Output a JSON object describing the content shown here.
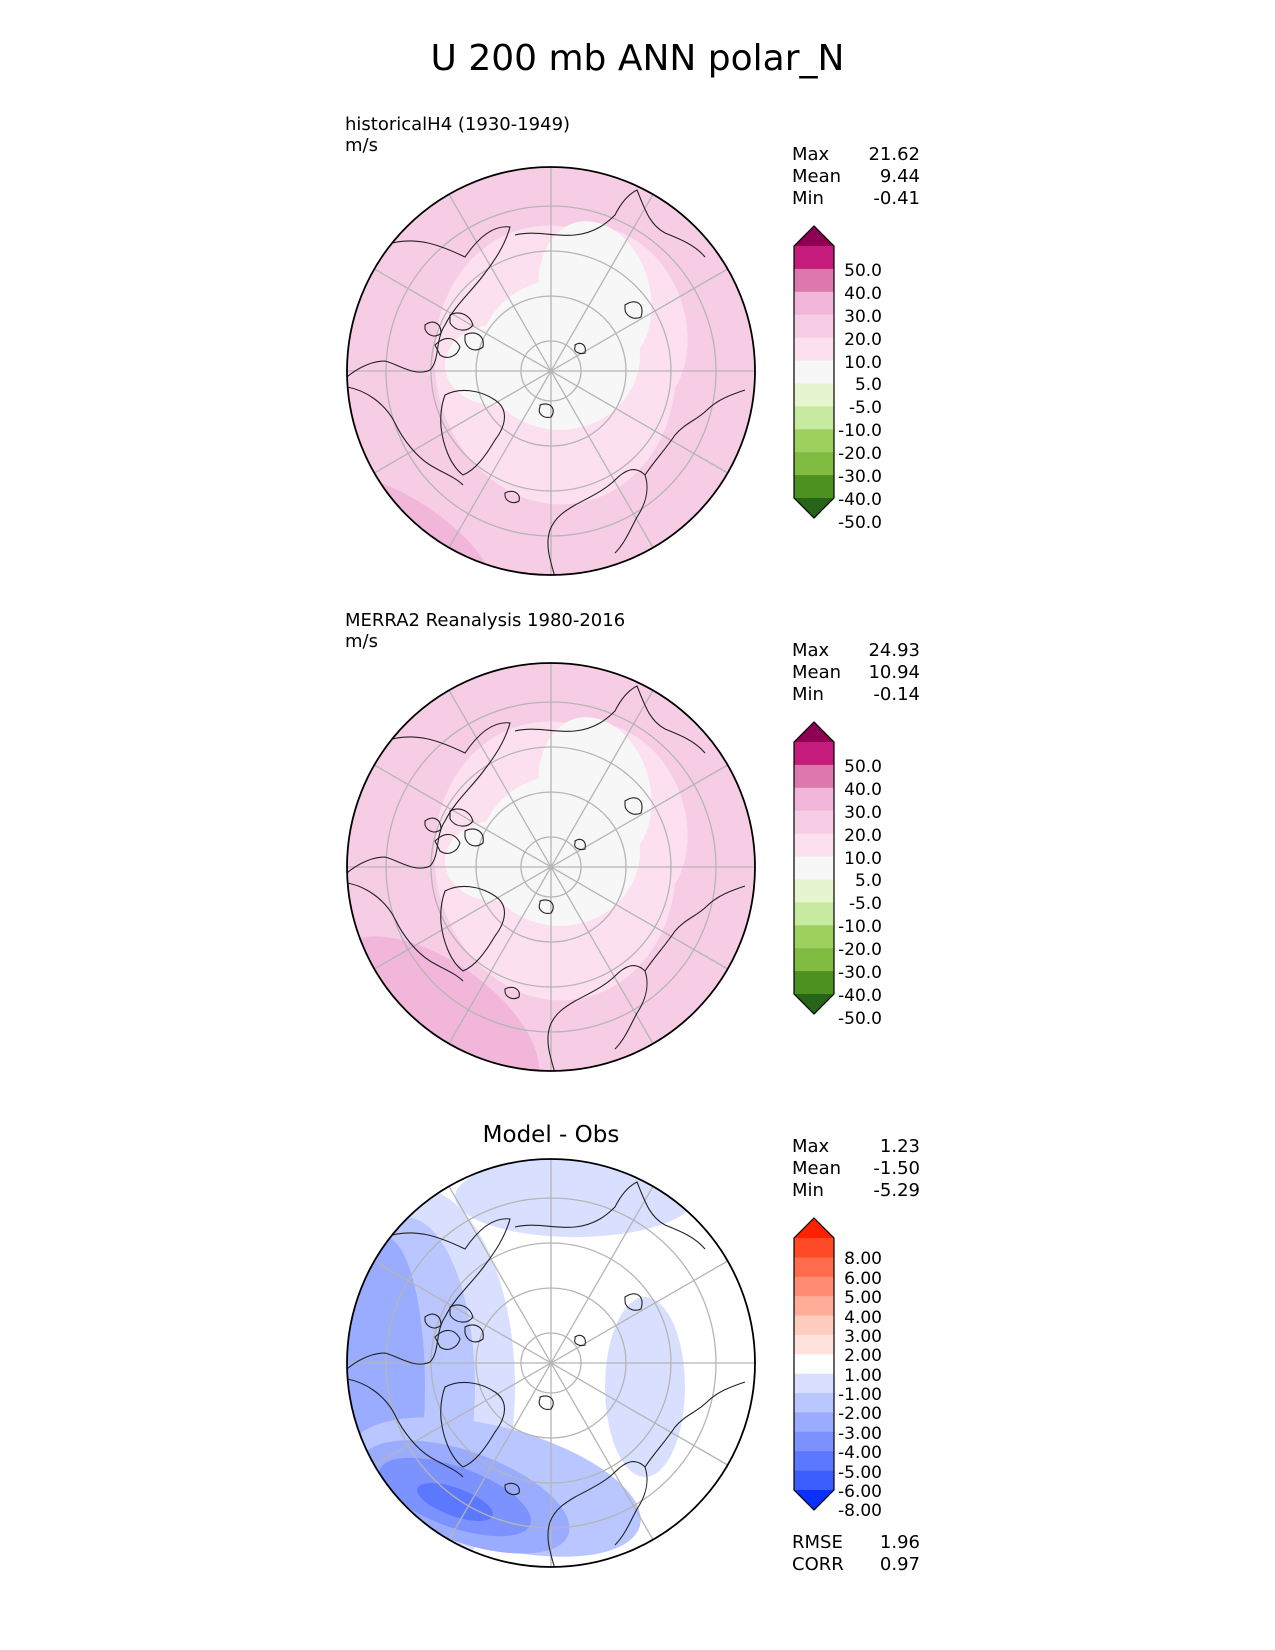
{
  "title": "U 200 mb ANN polar_N",
  "panels": [
    {
      "id": "model",
      "title": "historicalH4 (1930-1949)",
      "units": "m/s",
      "stats": [
        {
          "label": "Max",
          "value": "21.62"
        },
        {
          "label": "Mean",
          "value": "9.44"
        },
        {
          "label": "Min",
          "value": "-0.41"
        }
      ]
    },
    {
      "id": "obs",
      "title": "MERRA2 Reanalysis 1980-2016",
      "units": "m/s",
      "stats": [
        {
          "label": "Max",
          "value": "24.93"
        },
        {
          "label": "Mean",
          "value": "10.94"
        },
        {
          "label": "Min",
          "value": "-0.14"
        }
      ]
    },
    {
      "id": "diff",
      "title": "Model - Obs",
      "stats": [
        {
          "label": "Max",
          "value": "1.23"
        },
        {
          "label": "Mean",
          "value": "-1.50"
        },
        {
          "label": "Min",
          "value": "-5.29"
        }
      ],
      "metrics": [
        {
          "label": "RMSE",
          "value": "1.96"
        },
        {
          "label": "CORR",
          "value": "0.97"
        }
      ]
    }
  ],
  "colorbars": {
    "field": {
      "labels": [
        "50.0",
        "40.0",
        "30.0",
        "20.0",
        "10.0",
        "5.0",
        "-5.0",
        "-10.0",
        "-20.0",
        "-30.0",
        "-40.0",
        "-50.0"
      ],
      "colors": [
        "#8e0152",
        "#c51b7d",
        "#de77ae",
        "#f1b6da",
        "#f7cde6",
        "#fde0ef",
        "#f7f7f7",
        "#e6f5d0",
        "#c7e9a0",
        "#9cd15e",
        "#7fbc41",
        "#4d9221",
        "#276419"
      ]
    },
    "diff": {
      "labels": [
        "8.00",
        "6.00",
        "5.00",
        "4.00",
        "3.00",
        "2.00",
        "1.00",
        "-1.00",
        "-2.00",
        "-3.00",
        "-4.00",
        "-5.00",
        "-6.00",
        "-8.00"
      ],
      "colors": [
        "#ff2200",
        "#ff4a26",
        "#ff6b4c",
        "#ff8c73",
        "#ffad99",
        "#ffcdbf",
        "#ffe3da",
        "#ffffff",
        "#d9e0ff",
        "#b9c6ff",
        "#9aacff",
        "#7b92ff",
        "#5c78ff",
        "#3d5eff",
        "#0a30ff"
      ]
    }
  },
  "colors": {
    "grid": "#b5b5b5",
    "coast": "#222222"
  }
}
